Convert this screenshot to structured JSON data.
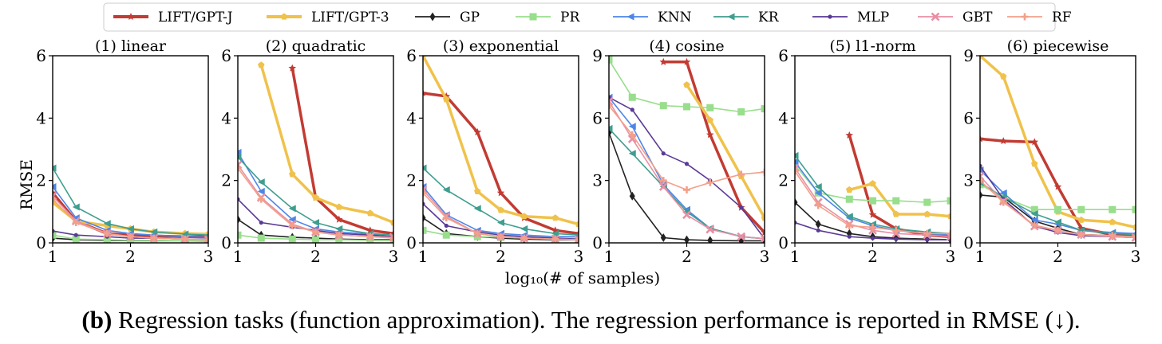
{
  "caption": {
    "label": "(b)",
    "text": " Regression tasks (function approximation). The regression performance is reported in RMSE (↓)."
  },
  "figure": {
    "xlabel": "log₁₀(# of samples)",
    "ylabel": "RMSE"
  },
  "legend": [
    {
      "name": "LIFT/GPT-J",
      "color": "#c23b33",
      "marker": "star"
    },
    {
      "name": "LIFT/GPT-3",
      "color": "#f0c24b",
      "marker": "pentagon"
    },
    {
      "name": "GP",
      "color": "#222222",
      "marker": "diamond"
    },
    {
      "name": "PR",
      "color": "#98de8c",
      "marker": "square"
    },
    {
      "name": "KNN",
      "color": "#4d86e8",
      "marker": "triangle-left"
    },
    {
      "name": "KR",
      "color": "#3f9e8f",
      "marker": "triangle-left"
    },
    {
      "name": "MLP",
      "color": "#5a3a96",
      "marker": "circle"
    },
    {
      "name": "GBT",
      "color": "#e98fa3",
      "marker": "x"
    },
    {
      "name": "RF",
      "color": "#f2a08a",
      "marker": "plus"
    }
  ],
  "chart_data": [
    {
      "type": "line",
      "title": "(1) linear",
      "ylim": [
        0,
        6
      ],
      "yticks": [
        0,
        2,
        4,
        6
      ],
      "xlim": [
        1,
        3
      ],
      "xticks": [
        1,
        2,
        3
      ],
      "x": [
        1,
        1.3,
        1.7,
        2,
        2.3,
        2.7,
        3
      ],
      "series": [
        {
          "name": "LIFT/GPT-J",
          "values": [
            1.6,
            0.7,
            0.3,
            0.25,
            0.22,
            0.2,
            0.2
          ]
        },
        {
          "name": "LIFT/GPT-3",
          "values": [
            1.3,
            0.7,
            0.55,
            0.45,
            0.35,
            0.3,
            0.28
          ]
        },
        {
          "name": "GP",
          "values": [
            0.15,
            0.1,
            0.08,
            0.07,
            0.07,
            0.07,
            0.06
          ]
        },
        {
          "name": "PR",
          "values": [
            0.25,
            0.12,
            0.1,
            0.08,
            0.08,
            0.07,
            0.07
          ]
        },
        {
          "name": "KNN",
          "values": [
            1.8,
            0.8,
            0.4,
            0.3,
            0.25,
            0.2,
            0.18
          ]
        },
        {
          "name": "KR",
          "values": [
            2.4,
            1.15,
            0.62,
            0.45,
            0.35,
            0.28,
            0.25
          ]
        },
        {
          "name": "MLP",
          "values": [
            0.38,
            0.25,
            0.2,
            0.15,
            0.15,
            0.12,
            0.12
          ]
        },
        {
          "name": "GBT",
          "values": [
            1.5,
            0.7,
            0.3,
            0.2,
            0.15,
            0.12,
            0.1
          ]
        },
        {
          "name": "RF",
          "values": [
            1.4,
            0.65,
            0.3,
            0.2,
            0.15,
            0.12,
            0.1
          ]
        }
      ]
    },
    {
      "type": "line",
      "title": "(2) quadratic",
      "ylim": [
        0,
        6
      ],
      "yticks": [
        0,
        2,
        4,
        6
      ],
      "xlim": [
        1,
        3
      ],
      "xticks": [
        1,
        2,
        3
      ],
      "x": [
        1,
        1.3,
        1.7,
        2,
        2.3,
        2.7,
        3
      ],
      "series": [
        {
          "name": "LIFT/GPT-J",
          "values": [
            null,
            null,
            5.6,
            1.45,
            0.75,
            0.4,
            0.3
          ]
        },
        {
          "name": "LIFT/GPT-3",
          "values": [
            null,
            5.7,
            2.2,
            1.45,
            1.15,
            0.95,
            0.65
          ]
        },
        {
          "name": "GP",
          "values": [
            0.75,
            0.25,
            0.18,
            0.15,
            0.12,
            0.1,
            0.1
          ]
        },
        {
          "name": "PR",
          "values": [
            0.25,
            0.15,
            0.12,
            0.1,
            0.1,
            0.08,
            0.08
          ]
        },
        {
          "name": "KNN",
          "values": [
            2.9,
            1.65,
            0.75,
            0.45,
            0.35,
            0.28,
            0.25
          ]
        },
        {
          "name": "KR",
          "values": [
            2.75,
            1.95,
            1.1,
            0.65,
            0.45,
            0.3,
            0.25
          ]
        },
        {
          "name": "MLP",
          "values": [
            1.4,
            0.65,
            0.5,
            0.4,
            0.3,
            0.25,
            0.2
          ]
        },
        {
          "name": "GBT",
          "values": [
            2.5,
            1.45,
            0.6,
            0.35,
            0.25,
            0.2,
            0.18
          ]
        },
        {
          "name": "RF",
          "values": [
            2.4,
            1.4,
            0.55,
            0.35,
            0.25,
            0.2,
            0.15
          ]
        }
      ]
    },
    {
      "type": "line",
      "title": "(3) exponential",
      "ylim": [
        0,
        6
      ],
      "yticks": [
        0,
        2,
        4,
        6
      ],
      "xlim": [
        1,
        3
      ],
      "xticks": [
        1,
        2,
        3
      ],
      "x": [
        1,
        1.3,
        1.7,
        2,
        2.3,
        2.7,
        3
      ],
      "series": [
        {
          "name": "LIFT/GPT-J",
          "values": [
            4.8,
            4.7,
            3.55,
            1.6,
            0.8,
            0.4,
            0.3
          ]
        },
        {
          "name": "LIFT/GPT-3",
          "values": [
            6.0,
            4.6,
            1.65,
            1.05,
            0.85,
            0.8,
            0.6
          ]
        },
        {
          "name": "GP",
          "values": [
            0.8,
            0.3,
            0.2,
            0.15,
            0.12,
            0.1,
            0.1
          ]
        },
        {
          "name": "PR",
          "values": [
            0.4,
            0.25,
            0.2,
            0.18,
            0.15,
            0.15,
            0.15
          ]
        },
        {
          "name": "KNN",
          "values": [
            1.8,
            0.9,
            0.4,
            0.3,
            0.25,
            0.2,
            0.2
          ]
        },
        {
          "name": "KR",
          "values": [
            2.4,
            1.7,
            1.1,
            0.65,
            0.45,
            0.3,
            0.25
          ]
        },
        {
          "name": "MLP",
          "values": [
            1.25,
            0.55,
            0.35,
            0.25,
            0.2,
            0.15,
            0.12
          ]
        },
        {
          "name": "GBT",
          "values": [
            1.7,
            0.85,
            0.3,
            0.2,
            0.15,
            0.12,
            0.1
          ]
        },
        {
          "name": "RF",
          "values": [
            1.6,
            0.8,
            0.3,
            0.2,
            0.15,
            0.12,
            0.1
          ]
        }
      ]
    },
    {
      "type": "line",
      "title": "(4) cosine",
      "ylim": [
        0,
        9
      ],
      "yticks": [
        0,
        3,
        6,
        9
      ],
      "xlim": [
        1,
        3
      ],
      "xticks": [
        1,
        2,
        3
      ],
      "x": [
        1,
        1.3,
        1.7,
        2,
        2.3,
        2.7,
        3
      ],
      "series": [
        {
          "name": "LIFT/GPT-J",
          "values": [
            null,
            null,
            8.7,
            8.7,
            5.2,
            1.7,
            0.5
          ]
        },
        {
          "name": "LIFT/GPT-3",
          "values": [
            null,
            null,
            null,
            7.6,
            5.9,
            3.2,
            1.2
          ]
        },
        {
          "name": "GP",
          "values": [
            5.3,
            2.25,
            0.25,
            0.15,
            0.12,
            0.1,
            0.1
          ]
        },
        {
          "name": "PR",
          "values": [
            8.8,
            7.0,
            6.6,
            6.55,
            6.5,
            6.3,
            6.45
          ]
        },
        {
          "name": "KNN",
          "values": [
            7.0,
            5.6,
            2.8,
            1.6,
            0.7,
            0.3,
            0.2
          ]
        },
        {
          "name": "KR",
          "values": [
            5.5,
            4.3,
            2.7,
            1.5,
            0.7,
            0.3,
            0.2
          ]
        },
        {
          "name": "MLP",
          "values": [
            7.0,
            6.4,
            4.3,
            3.8,
            3.0,
            1.7,
            0.2
          ]
        },
        {
          "name": "GBT",
          "values": [
            6.8,
            5.0,
            2.7,
            1.35,
            0.65,
            0.3,
            0.2
          ]
        },
        {
          "name": "RF",
          "values": [
            6.6,
            5.2,
            3.0,
            2.55,
            2.9,
            3.3,
            3.4
          ]
        }
      ]
    },
    {
      "type": "line",
      "title": "(5) l1-norm",
      "ylim": [
        0,
        6
      ],
      "yticks": [
        0,
        2,
        4,
        6
      ],
      "xlim": [
        1,
        3
      ],
      "xticks": [
        1,
        2,
        3
      ],
      "x": [
        1,
        1.3,
        1.7,
        2,
        2.3,
        2.7,
        3
      ],
      "series": [
        {
          "name": "LIFT/GPT-J",
          "values": [
            null,
            null,
            3.45,
            0.9,
            0.45,
            0.25,
            0.2
          ]
        },
        {
          "name": "LIFT/GPT-3",
          "values": [
            null,
            null,
            1.7,
            1.9,
            0.92,
            0.92,
            0.85
          ]
        },
        {
          "name": "GP",
          "values": [
            1.3,
            0.6,
            0.3,
            0.2,
            0.15,
            0.12,
            0.1
          ]
        },
        {
          "name": "PR",
          "values": [
            2.5,
            1.6,
            1.4,
            1.35,
            1.35,
            1.3,
            1.35
          ]
        },
        {
          "name": "KNN",
          "values": [
            2.6,
            1.6,
            0.8,
            0.55,
            0.4,
            0.3,
            0.25
          ]
        },
        {
          "name": "KR",
          "values": [
            2.8,
            1.8,
            0.85,
            0.6,
            0.45,
            0.35,
            0.3
          ]
        },
        {
          "name": "MLP",
          "values": [
            0.65,
            0.4,
            0.2,
            0.15,
            0.12,
            0.1,
            0.1
          ]
        },
        {
          "name": "GBT",
          "values": [
            2.4,
            1.3,
            0.6,
            0.4,
            0.3,
            0.25,
            0.2
          ]
        },
        {
          "name": "RF",
          "values": [
            2.3,
            1.2,
            0.55,
            0.5,
            0.4,
            0.3,
            0.3
          ]
        }
      ]
    },
    {
      "type": "line",
      "title": "(6) piecewise",
      "ylim": [
        0,
        9
      ],
      "yticks": [
        0,
        3,
        6,
        9
      ],
      "xlim": [
        1,
        3
      ],
      "xticks": [
        1,
        2,
        3
      ],
      "x": [
        1,
        1.3,
        1.7,
        2,
        2.3,
        2.7,
        3
      ],
      "series": [
        {
          "name": "LIFT/GPT-J",
          "values": [
            5.0,
            4.9,
            4.85,
            2.7,
            0.7,
            0.4,
            0.3
          ]
        },
        {
          "name": "LIFT/GPT-3",
          "values": [
            9.0,
            8.0,
            3.8,
            1.5,
            1.1,
            1.0,
            0.75
          ]
        },
        {
          "name": "GP",
          "values": [
            2.3,
            2.2,
            1.05,
            0.7,
            0.4,
            0.35,
            0.3
          ]
        },
        {
          "name": "PR",
          "values": [
            2.8,
            2.2,
            1.6,
            1.6,
            1.6,
            1.6,
            1.6
          ]
        },
        {
          "name": "KNN",
          "values": [
            3.5,
            2.4,
            1.1,
            0.9,
            0.6,
            0.5,
            0.45
          ]
        },
        {
          "name": "KR",
          "values": [
            2.9,
            2.2,
            1.4,
            1.0,
            0.6,
            0.45,
            0.4
          ]
        },
        {
          "name": "MLP",
          "values": [
            3.7,
            2.1,
            0.8,
            0.5,
            0.35,
            0.3,
            0.25
          ]
        },
        {
          "name": "GBT",
          "values": [
            3.2,
            2.0,
            0.8,
            0.6,
            0.4,
            0.3,
            0.25
          ]
        },
        {
          "name": "RF",
          "values": [
            3.0,
            1.95,
            0.85,
            0.6,
            0.4,
            0.35,
            0.3
          ]
        }
      ]
    }
  ]
}
